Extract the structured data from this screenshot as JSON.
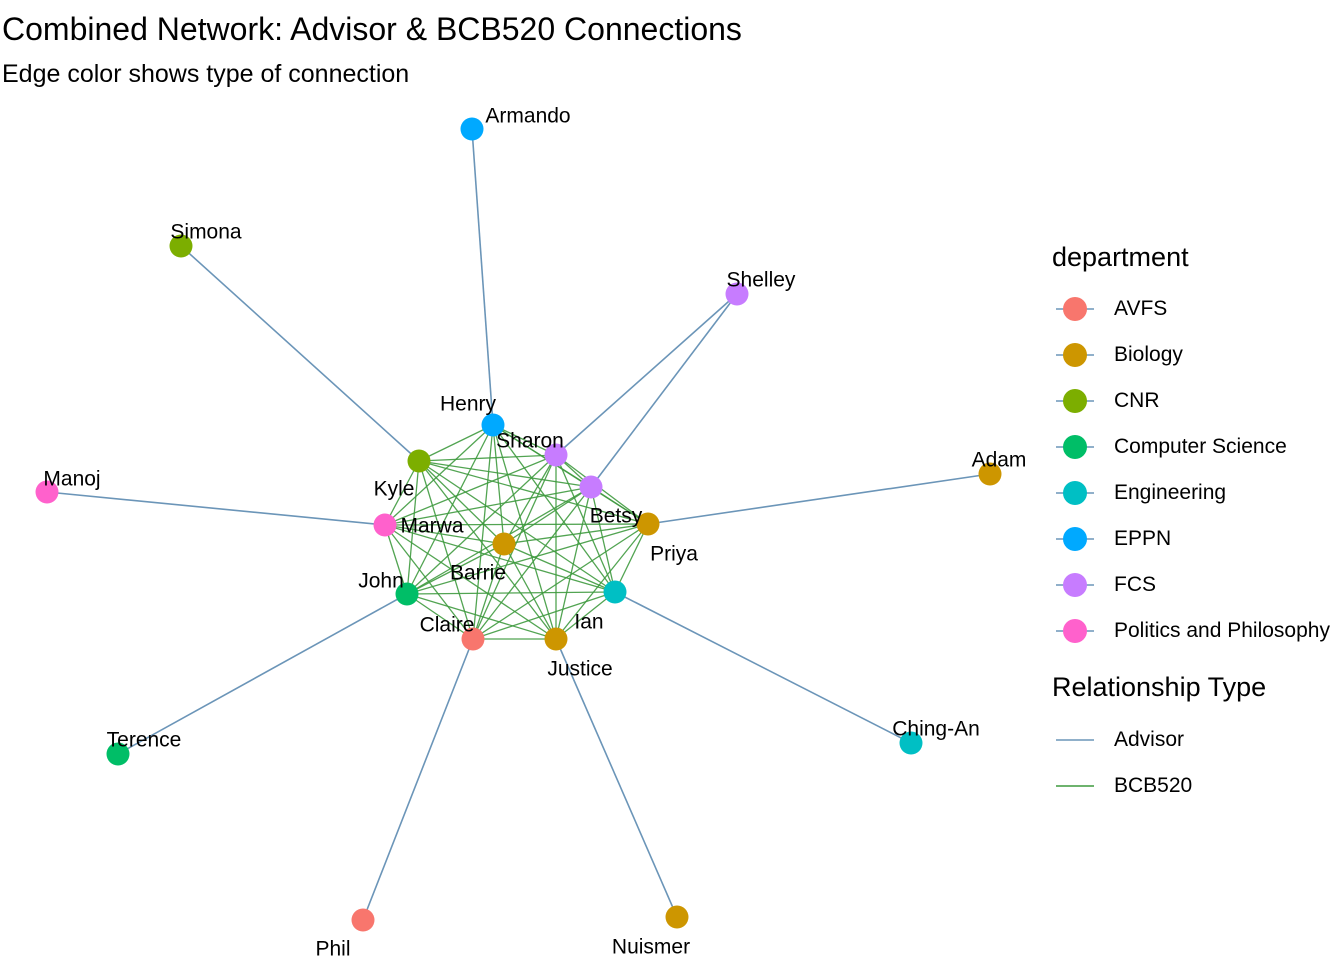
{
  "title": "Combined Network: Advisor & BCB520 Connections",
  "subtitle": "Edge color shows type of connection",
  "legend": {
    "department_title": "department",
    "departments": [
      {
        "label": "AVFS",
        "color": "#F8766D"
      },
      {
        "label": "Biology",
        "color": "#CD9600"
      },
      {
        "label": "CNR",
        "color": "#7CAE00"
      },
      {
        "label": "Computer Science",
        "color": "#00BE67"
      },
      {
        "label": "Engineering",
        "color": "#00BFC4"
      },
      {
        "label": "EPPN",
        "color": "#00A9FF"
      },
      {
        "label": "FCS",
        "color": "#C77CFF"
      },
      {
        "label": "Politics and Philosophy",
        "color": "#FF61CC"
      }
    ],
    "relationship_title": "Relationship Type",
    "relationships": [
      {
        "label": "Advisor",
        "color": "#6B95B8"
      },
      {
        "label": "BCB520",
        "color": "#3F9A3F"
      }
    ]
  },
  "nodes": [
    {
      "id": "Armando",
      "department": "EPPN"
    },
    {
      "id": "Simona",
      "department": "CNR"
    },
    {
      "id": "Shelley",
      "department": "FCS"
    },
    {
      "id": "Henry",
      "department": "EPPN"
    },
    {
      "id": "Sharon",
      "department": "FCS"
    },
    {
      "id": "Adam",
      "department": "Biology"
    },
    {
      "id": "Kyle",
      "department": "CNR"
    },
    {
      "id": "Betsy",
      "department": "FCS"
    },
    {
      "id": "Manoj",
      "department": "Politics and Philosophy"
    },
    {
      "id": "Marwa",
      "department": "Politics and Philosophy"
    },
    {
      "id": "Priya",
      "department": "Biology"
    },
    {
      "id": "Barrie",
      "department": "Biology"
    },
    {
      "id": "John",
      "department": "Computer Science"
    },
    {
      "id": "Ian",
      "department": "Engineering"
    },
    {
      "id": "Claire",
      "department": "AVFS"
    },
    {
      "id": "Justice",
      "department": "Biology"
    },
    {
      "id": "Ching-An",
      "department": "Engineering"
    },
    {
      "id": "Terence",
      "department": "Computer Science"
    },
    {
      "id": "Phil",
      "department": "AVFS"
    },
    {
      "id": "Nuismer",
      "department": "Biology"
    }
  ],
  "bcb520_members": [
    "Henry",
    "Sharon",
    "Kyle",
    "Betsy",
    "Marwa",
    "Priya",
    "Barrie",
    "John",
    "Ian",
    "Claire",
    "Justice"
  ],
  "advisor_edges": [
    [
      "Armando",
      "Henry"
    ],
    [
      "Simona",
      "Kyle"
    ],
    [
      "Shelley",
      "Sharon"
    ],
    [
      "Shelley",
      "Betsy"
    ],
    [
      "Adam",
      "Priya"
    ],
    [
      "Manoj",
      "Marwa"
    ],
    [
      "Terence",
      "John"
    ],
    [
      "Phil",
      "Claire"
    ],
    [
      "Nuismer",
      "Justice"
    ],
    [
      "Ching-An",
      "Ian"
    ]
  ]
}
